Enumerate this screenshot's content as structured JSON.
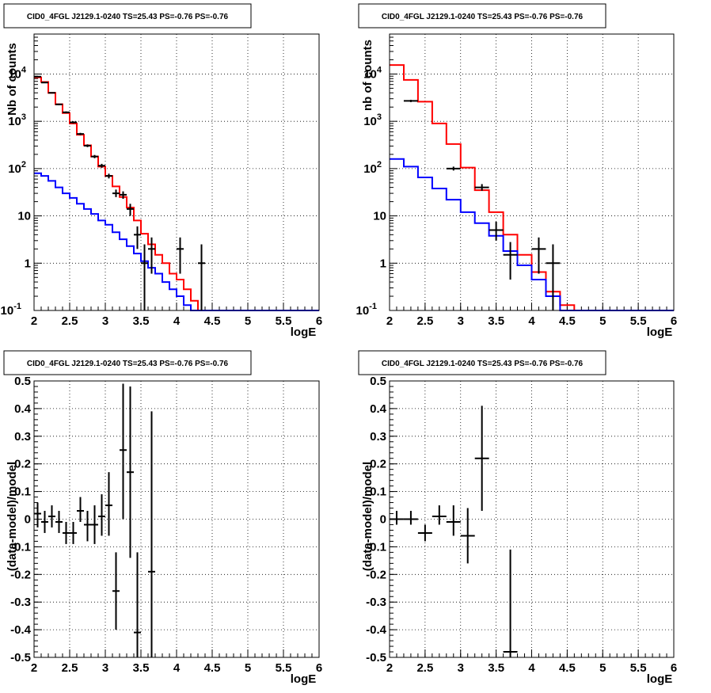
{
  "chart_data": [
    {
      "type": "histogram",
      "title": "CID0_4FGL J2129.1-0240 TS=25.43 PS=-0.76 PS=-0.76",
      "xlabel": "logE",
      "ylabel": "Nb of counts",
      "xlim": [
        2,
        6
      ],
      "ylim": [
        0.1,
        70000
      ],
      "yscale": "log",
      "grid": true,
      "xticks": [
        "2",
        "2.5",
        "3",
        "3.5",
        "4",
        "4.5",
        "5",
        "5.5",
        "6"
      ],
      "yticks": [
        {
          "v": 0.1,
          "base": "10",
          "exp": "-1"
        },
        {
          "v": 1,
          "base": "1",
          "exp": ""
        },
        {
          "v": 10,
          "base": "10",
          "exp": ""
        },
        {
          "v": 100,
          "base": "10",
          "exp": "2"
        },
        {
          "v": 1000,
          "base": "10",
          "exp": "3"
        },
        {
          "v": 10000,
          "base": "10",
          "exp": "4"
        }
      ],
      "bin_edges": [
        2.0,
        2.1,
        2.2,
        2.3,
        2.4,
        2.5,
        2.6,
        2.7,
        2.8,
        2.9,
        3.0,
        3.1,
        3.2,
        3.3,
        3.4,
        3.5,
        3.6,
        3.7,
        3.8,
        3.9,
        4.0,
        4.1,
        4.2,
        4.3,
        4.4,
        4.5,
        4.6,
        4.7,
        4.8,
        4.9,
        5.0,
        5.1,
        5.2,
        5.3,
        5.4,
        5.5,
        5.6,
        5.7,
        5.8,
        5.9,
        6.0
      ],
      "series": [
        {
          "name": "",
          "color": "#ff0000",
          "values": [
            8500,
            6800,
            4000,
            2300,
            1500,
            900,
            520,
            310,
            180,
            110,
            70,
            42,
            25,
            15,
            8,
            4.2,
            2.5,
            1.5,
            1.0,
            0.6,
            0.45,
            0.28,
            0.16,
            0.09,
            0.1,
            0.1,
            0.1,
            0.1,
            0.1,
            0.1,
            0.1,
            0.1,
            0.1,
            0.1,
            0.1,
            0.1,
            0.1,
            0.1,
            0.1,
            0.1
          ]
        },
        {
          "name": "",
          "color": "#0000ff",
          "values": [
            80,
            70,
            55,
            40,
            30,
            24,
            18,
            14,
            11,
            8,
            6.5,
            4.5,
            3.2,
            2.3,
            1.6,
            1.1,
            0.8,
            0.6,
            0.4,
            0.28,
            0.2,
            0.13,
            0.1,
            0.1,
            0.1,
            0.1,
            0.1,
            0.1,
            0.1,
            0.1,
            0.1,
            0.1,
            0.1,
            0.1,
            0.1,
            0.1,
            0.1,
            0.1,
            0.1,
            0.1
          ]
        }
      ],
      "points": [
        {
          "x": 2.05,
          "y": 8800,
          "lo": 8600,
          "hi": 9000
        },
        {
          "x": 2.15,
          "y": 6600,
          "lo": 6450,
          "hi": 6750
        },
        {
          "x": 2.25,
          "y": 4000,
          "lo": 3900,
          "hi": 4100
        },
        {
          "x": 2.35,
          "y": 2280,
          "lo": 2200,
          "hi": 2360
        },
        {
          "x": 2.45,
          "y": 1550,
          "lo": 1480,
          "hi": 1620
        },
        {
          "x": 2.55,
          "y": 950,
          "lo": 900,
          "hi": 1000
        },
        {
          "x": 2.65,
          "y": 540,
          "lo": 510,
          "hi": 570
        },
        {
          "x": 2.75,
          "y": 305,
          "lo": 285,
          "hi": 325
        },
        {
          "x": 2.85,
          "y": 180,
          "lo": 166,
          "hi": 194
        },
        {
          "x": 2.95,
          "y": 115,
          "lo": 104,
          "hi": 126
        },
        {
          "x": 3.05,
          "y": 70,
          "lo": 62,
          "hi": 78
        },
        {
          "x": 3.15,
          "y": 30,
          "lo": 25,
          "hi": 36
        },
        {
          "x": 3.25,
          "y": 28,
          "lo": 23,
          "hi": 33
        },
        {
          "x": 3.35,
          "y": 14,
          "lo": 10,
          "hi": 18
        },
        {
          "x": 3.45,
          "y": 4,
          "lo": 2,
          "hi": 6
        },
        {
          "x": 3.55,
          "y": 1,
          "lo": 0.1,
          "hi": 2.5
        },
        {
          "x": 3.65,
          "y": 2,
          "lo": 0.6,
          "hi": 3.5
        },
        {
          "x": 4.05,
          "y": 2,
          "lo": 0.6,
          "hi": 3.5
        },
        {
          "x": 4.35,
          "y": 1,
          "lo": 0.1,
          "hi": 2.5
        }
      ]
    },
    {
      "type": "histogram",
      "title": "CID0_4FGL J2129.1-0240 TS=25.43 PS=-0.76 PS=-0.76",
      "xlabel": "logE",
      "ylabel": "nb of counts",
      "xlim": [
        2,
        6
      ],
      "ylim": [
        0.1,
        70000
      ],
      "yscale": "log",
      "grid": true,
      "xticks": [
        "2",
        "2.5",
        "3",
        "3.5",
        "4",
        "4.5",
        "5",
        "5.5",
        "6"
      ],
      "yticks": [
        {
          "v": 0.1,
          "base": "10",
          "exp": "-1"
        },
        {
          "v": 1,
          "base": "1",
          "exp": ""
        },
        {
          "v": 10,
          "base": "10",
          "exp": ""
        },
        {
          "v": 100,
          "base": "10",
          "exp": "2"
        },
        {
          "v": 1000,
          "base": "10",
          "exp": "3"
        },
        {
          "v": 10000,
          "base": "10",
          "exp": "4"
        }
      ],
      "bin_edges": [
        2.0,
        2.2,
        2.4,
        2.6,
        2.8,
        3.0,
        3.2,
        3.4,
        3.6,
        3.8,
        4.0,
        4.2,
        4.4,
        4.6,
        4.8,
        5.0,
        5.2,
        5.4,
        5.6,
        5.8,
        6.0
      ],
      "series": [
        {
          "name": "",
          "color": "#ff0000",
          "values": [
            15500,
            7500,
            2600,
            900,
            330,
            105,
            35,
            12,
            4,
            1.5,
            0.65,
            0.25,
            0.13,
            0.1,
            0.1,
            0.1,
            0.1,
            0.1,
            0.1,
            0.1
          ]
        },
        {
          "name": "",
          "color": "#0000ff",
          "values": [
            160,
            110,
            65,
            38,
            22,
            12,
            7,
            3.8,
            1.8,
            0.9,
            0.45,
            0.2,
            0.1,
            0.1,
            0.1,
            0.1,
            0.1,
            0.1,
            0.1,
            0.1
          ]
        }
      ],
      "points": [
        {
          "x": 2.3,
          "y": 2700,
          "lo": 2550,
          "hi": 2850
        },
        {
          "x": 2.9,
          "y": 100,
          "lo": 91,
          "hi": 110
        },
        {
          "x": 3.3,
          "y": 40,
          "lo": 34,
          "hi": 47
        },
        {
          "x": 3.5,
          "y": 5,
          "lo": 3,
          "hi": 7.5
        },
        {
          "x": 3.7,
          "y": 1.5,
          "lo": 0.45,
          "hi": 2.8
        },
        {
          "x": 4.1,
          "y": 2,
          "lo": 0.6,
          "hi": 3.5
        },
        {
          "x": 4.3,
          "y": 1,
          "lo": 0.1,
          "hi": 2.5
        }
      ]
    },
    {
      "type": "scatter",
      "title": "CID0_4FGL J2129.1-0240 TS=25.43 PS=-0.76 PS=-0.76",
      "xlabel": "logE",
      "ylabel": "(data-model)/model",
      "xlim": [
        2,
        6
      ],
      "ylim": [
        -0.5,
        0.5
      ],
      "grid": true,
      "xticks": [
        "2",
        "2.5",
        "3",
        "3.5",
        "4",
        "4.5",
        "5",
        "5.5",
        "6"
      ],
      "yticks": [
        "-0.5",
        "-0.4",
        "-0.3",
        "-0.2",
        "-0.1",
        "0",
        "0.1",
        "0.2",
        "0.3",
        "0.4",
        "0.5"
      ],
      "halfwidth": 0.05,
      "points": [
        {
          "x": 2.05,
          "y": 0.02,
          "lo": -0.03,
          "hi": 0.06
        },
        {
          "x": 2.15,
          "y": -0.01,
          "lo": -0.05,
          "hi": 0.03
        },
        {
          "x": 2.25,
          "y": 0.01,
          "lo": -0.03,
          "hi": 0.05
        },
        {
          "x": 2.35,
          "y": -0.01,
          "lo": -0.05,
          "hi": 0.03
        },
        {
          "x": 2.45,
          "y": -0.05,
          "lo": -0.09,
          "hi": -0.01
        },
        {
          "x": 2.55,
          "y": -0.05,
          "lo": -0.09,
          "hi": -0.01
        },
        {
          "x": 2.65,
          "y": 0.03,
          "lo": -0.01,
          "hi": 0.08
        },
        {
          "x": 2.75,
          "y": -0.02,
          "lo": -0.08,
          "hi": 0.03
        },
        {
          "x": 2.85,
          "y": -0.02,
          "lo": -0.09,
          "hi": 0.05
        },
        {
          "x": 2.95,
          "y": 0.01,
          "lo": -0.06,
          "hi": 0.09
        },
        {
          "x": 3.05,
          "y": 0.05,
          "lo": -0.06,
          "hi": 0.17
        },
        {
          "x": 3.15,
          "y": -0.26,
          "lo": -0.4,
          "hi": -0.12
        },
        {
          "x": 3.25,
          "y": 0.25,
          "lo": 0.0,
          "hi": 0.49
        },
        {
          "x": 3.35,
          "y": 0.17,
          "lo": -0.14,
          "hi": 0.48
        },
        {
          "x": 3.45,
          "y": -0.41,
          "lo": -0.5,
          "hi": -0.12
        },
        {
          "x": 3.65,
          "y": -0.19,
          "lo": -0.5,
          "hi": 0.39
        }
      ]
    },
    {
      "type": "scatter",
      "title": "CID0_4FGL J2129.1-0240 TS=25.43 PS=-0.76 PS=-0.76",
      "xlabel": "logE",
      "ylabel": "(data-model)/model",
      "xlim": [
        2,
        6
      ],
      "ylim": [
        -0.5,
        0.5
      ],
      "grid": true,
      "xticks": [
        "2",
        "2.5",
        "3",
        "3.5",
        "4",
        "4.5",
        "5",
        "5.5",
        "6"
      ],
      "yticks": [
        "-0.5",
        "-0.4",
        "-0.3",
        "-0.2",
        "-0.1",
        "0",
        "0.1",
        "0.2",
        "0.3",
        "0.4",
        "0.5"
      ],
      "halfwidth": 0.1,
      "points": [
        {
          "x": 2.1,
          "y": 0.0,
          "lo": -0.02,
          "hi": 0.03
        },
        {
          "x": 2.3,
          "y": 0.0,
          "lo": -0.02,
          "hi": 0.03
        },
        {
          "x": 2.5,
          "y": -0.05,
          "lo": -0.08,
          "hi": -0.02
        },
        {
          "x": 2.7,
          "y": 0.01,
          "lo": -0.02,
          "hi": 0.05
        },
        {
          "x": 2.9,
          "y": -0.01,
          "lo": -0.06,
          "hi": 0.05
        },
        {
          "x": 3.1,
          "y": -0.06,
          "lo": -0.16,
          "hi": 0.04
        },
        {
          "x": 3.3,
          "y": 0.22,
          "lo": 0.03,
          "hi": 0.41
        },
        {
          "x": 3.7,
          "y": -0.48,
          "lo": -0.5,
          "hi": -0.11
        }
      ]
    }
  ]
}
